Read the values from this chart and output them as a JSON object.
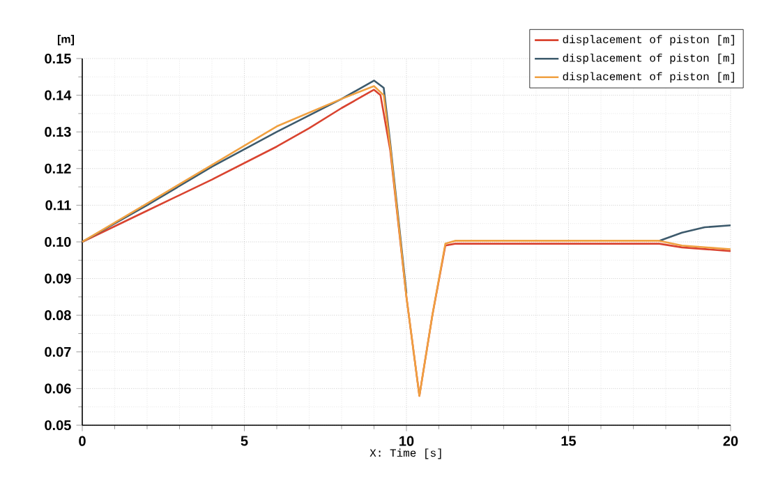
{
  "chart_data": {
    "type": "line",
    "xlabel": "X: Time [s]",
    "ylabel": "[m]",
    "xlim": [
      0,
      20
    ],
    "ylim": [
      0.05,
      0.15
    ],
    "xticks": [
      0,
      5,
      10,
      15,
      20
    ],
    "yticks": [
      {
        "value": 0.05,
        "label": "0.05"
      },
      {
        "value": 0.06,
        "label": "0.06"
      },
      {
        "value": 0.07,
        "label": "0.07"
      },
      {
        "value": 0.08,
        "label": "0.08"
      },
      {
        "value": 0.09,
        "label": "0.09"
      },
      {
        "value": 0.1,
        "label": "0.10"
      },
      {
        "value": 0.11,
        "label": "0.11"
      },
      {
        "value": 0.12,
        "label": "0.12"
      },
      {
        "value": 0.13,
        "label": "0.13"
      },
      {
        "value": 0.14,
        "label": "0.14"
      },
      {
        "value": 0.15,
        "label": "0.15"
      }
    ],
    "grid": true,
    "legend": "top right",
    "marker": "none",
    "line_style": "solid",
    "series": [
      {
        "name": "displacement of piston [m]",
        "color": "#d9432f",
        "x": [
          0,
          2,
          4,
          6,
          7,
          8,
          9,
          9.2,
          9.5,
          10,
          10.4,
          10.8,
          11.2,
          11.5,
          15,
          17.8,
          18.5,
          20
        ],
        "values": [
          0.1,
          0.1085,
          0.117,
          0.126,
          0.131,
          0.1365,
          0.1415,
          0.14,
          0.125,
          0.085,
          0.058,
          0.08,
          0.099,
          0.0995,
          0.0995,
          0.0995,
          0.0985,
          0.0975
        ]
      },
      {
        "name": "displacement of piston [m]",
        "color": "#3d5a6c",
        "x": [
          0,
          2,
          4,
          6,
          8,
          9,
          9.3,
          9.5,
          10,
          10.4,
          10.8,
          11.2,
          11.5,
          15,
          17.8,
          18.5,
          19.2,
          20
        ],
        "values": [
          0.1,
          0.11,
          0.1205,
          0.13,
          0.139,
          0.144,
          0.142,
          0.127,
          0.086,
          null,
          null,
          null,
          null,
          null,
          0.1003,
          0.1025,
          0.104,
          0.1045
        ]
      },
      {
        "name": "displacement of piston [m]",
        "color": "#f0a040",
        "x": [
          0,
          2,
          4,
          6,
          8,
          9,
          9.3,
          9.5,
          10,
          10.4,
          10.8,
          11.2,
          11.5,
          15,
          17.8,
          18.5,
          20
        ],
        "values": [
          0.1,
          0.1105,
          0.121,
          0.1315,
          0.139,
          0.1425,
          0.14,
          0.126,
          0.085,
          0.058,
          0.08,
          0.0995,
          0.1003,
          0.1003,
          0.1003,
          0.099,
          0.098
        ]
      }
    ]
  }
}
